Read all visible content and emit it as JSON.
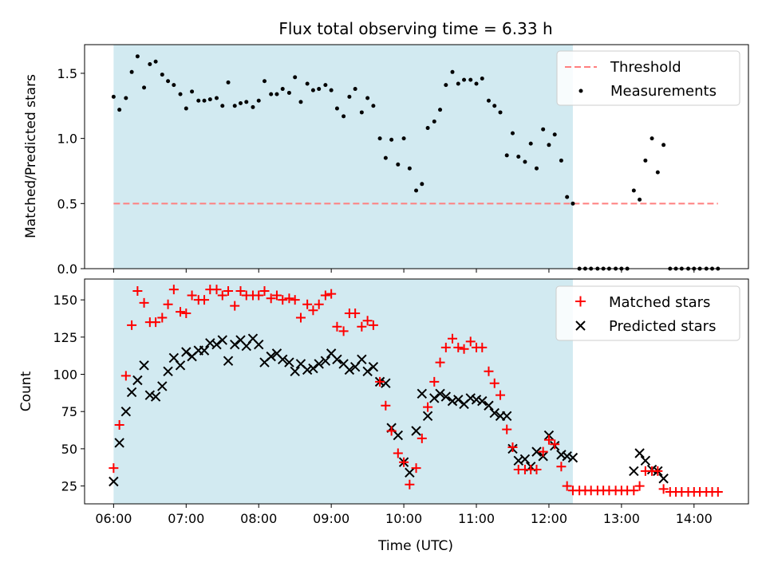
{
  "chart_data": {
    "type": "scatter",
    "title": "Flux total observing time = 6.33 h",
    "x_unit": "hours UTC",
    "xlabel": "Time (UTC)",
    "xlim": [
      5.6,
      14.75
    ],
    "xticks": [
      "06:00",
      "07:00",
      "08:00",
      "09:00",
      "10:00",
      "11:00",
      "12:00",
      "13:00",
      "14:00"
    ],
    "observing_window": [
      6.0,
      12.33
    ],
    "colors": {
      "window": "#add8e6",
      "threshold": "#ff7f7f",
      "matched": "#ff0000",
      "predicted": "#000000",
      "measurement": "#000000"
    },
    "top": {
      "ylabel": "Matched/Predicted stars",
      "ylim": [
        0,
        1.72
      ],
      "yticks": [
        "0.0",
        "0.5",
        "1.0",
        "1.5"
      ],
      "legend": {
        "position": "top-right",
        "threshold_label": "Threshold",
        "measurements_label": "Measurements"
      },
      "threshold": {
        "x": [
          6.0,
          14.33
        ],
        "y": 0.5
      },
      "measurements": [
        [
          6.0,
          1.32
        ],
        [
          6.08,
          1.22
        ],
        [
          6.17,
          1.31
        ],
        [
          6.25,
          1.51
        ],
        [
          6.33,
          1.63
        ],
        [
          6.42,
          1.39
        ],
        [
          6.5,
          1.57
        ],
        [
          6.58,
          1.59
        ],
        [
          6.67,
          1.49
        ],
        [
          6.75,
          1.44
        ],
        [
          6.83,
          1.41
        ],
        [
          6.92,
          1.34
        ],
        [
          7.0,
          1.23
        ],
        [
          7.08,
          1.36
        ],
        [
          7.17,
          1.29
        ],
        [
          7.25,
          1.29
        ],
        [
          7.33,
          1.3
        ],
        [
          7.42,
          1.31
        ],
        [
          7.5,
          1.25
        ],
        [
          7.58,
          1.43
        ],
        [
          7.67,
          1.25
        ],
        [
          7.75,
          1.27
        ],
        [
          7.83,
          1.28
        ],
        [
          7.92,
          1.24
        ],
        [
          8.0,
          1.29
        ],
        [
          8.08,
          1.44
        ],
        [
          8.17,
          1.34
        ],
        [
          8.25,
          1.34
        ],
        [
          8.33,
          1.38
        ],
        [
          8.42,
          1.35
        ],
        [
          8.5,
          1.47
        ],
        [
          8.58,
          1.28
        ],
        [
          8.67,
          1.42
        ],
        [
          8.75,
          1.37
        ],
        [
          8.83,
          1.38
        ],
        [
          8.92,
          1.41
        ],
        [
          9.0,
          1.37
        ],
        [
          9.08,
          1.23
        ],
        [
          9.17,
          1.17
        ],
        [
          9.25,
          1.32
        ],
        [
          9.33,
          1.38
        ],
        [
          9.42,
          1.2
        ],
        [
          9.5,
          1.31
        ],
        [
          9.58,
          1.25
        ],
        [
          9.67,
          1.0
        ],
        [
          9.75,
          0.85
        ],
        [
          9.83,
          0.99
        ],
        [
          9.92,
          0.8
        ],
        [
          10.0,
          1.0
        ],
        [
          10.08,
          0.77
        ],
        [
          10.17,
          0.6
        ],
        [
          10.25,
          0.65
        ],
        [
          10.33,
          1.08
        ],
        [
          10.42,
          1.13
        ],
        [
          10.5,
          1.22
        ],
        [
          10.58,
          1.41
        ],
        [
          10.67,
          1.51
        ],
        [
          10.75,
          1.42
        ],
        [
          10.83,
          1.45
        ],
        [
          10.92,
          1.45
        ],
        [
          11.0,
          1.42
        ],
        [
          11.08,
          1.46
        ],
        [
          11.17,
          1.29
        ],
        [
          11.25,
          1.25
        ],
        [
          11.33,
          1.2
        ],
        [
          11.42,
          0.87
        ],
        [
          11.5,
          1.04
        ],
        [
          11.58,
          0.86
        ],
        [
          11.67,
          0.82
        ],
        [
          11.75,
          0.96
        ],
        [
          11.83,
          0.77
        ],
        [
          11.92,
          1.07
        ],
        [
          12.0,
          0.95
        ],
        [
          12.08,
          1.03
        ],
        [
          12.17,
          0.83
        ],
        [
          12.25,
          0.55
        ],
        [
          12.33,
          0.5
        ],
        [
          12.42,
          0
        ],
        [
          12.5,
          0
        ],
        [
          12.58,
          0
        ],
        [
          12.67,
          0
        ],
        [
          12.75,
          0
        ],
        [
          12.83,
          0
        ],
        [
          12.92,
          0
        ],
        [
          13.0,
          0
        ],
        [
          13.08,
          0
        ],
        [
          13.17,
          0.6
        ],
        [
          13.25,
          0.53
        ],
        [
          13.33,
          0.83
        ],
        [
          13.42,
          1.0
        ],
        [
          13.5,
          0.74
        ],
        [
          13.58,
          0.95
        ],
        [
          13.67,
          0
        ],
        [
          13.75,
          0
        ],
        [
          13.83,
          0
        ],
        [
          13.92,
          0
        ],
        [
          14.0,
          0
        ],
        [
          14.08,
          0
        ],
        [
          14.17,
          0
        ],
        [
          14.25,
          0
        ],
        [
          14.33,
          0
        ]
      ]
    },
    "bottom": {
      "ylabel": "Count",
      "ylim": [
        13,
        164
      ],
      "yticks": [
        "25",
        "50",
        "75",
        "100",
        "125",
        "150"
      ],
      "legend": {
        "position": "top-right",
        "matched_label": "Matched stars",
        "predicted_label": "Predicted stars"
      },
      "matched": [
        [
          6.0,
          37
        ],
        [
          6.08,
          66
        ],
        [
          6.17,
          99
        ],
        [
          6.25,
          133
        ],
        [
          6.33,
          156
        ],
        [
          6.42,
          148
        ],
        [
          6.5,
          135
        ],
        [
          6.58,
          135
        ],
        [
          6.67,
          138
        ],
        [
          6.75,
          147
        ],
        [
          6.83,
          157
        ],
        [
          6.92,
          142
        ],
        [
          7.0,
          141
        ],
        [
          7.08,
          153
        ],
        [
          7.17,
          150
        ],
        [
          7.25,
          150
        ],
        [
          7.33,
          157
        ],
        [
          7.42,
          157
        ],
        [
          7.5,
          153
        ],
        [
          7.58,
          156
        ],
        [
          7.67,
          146
        ],
        [
          7.75,
          156
        ],
        [
          7.83,
          153
        ],
        [
          7.92,
          153
        ],
        [
          8.0,
          153
        ],
        [
          8.08,
          156
        ],
        [
          8.17,
          151
        ],
        [
          8.25,
          153
        ],
        [
          8.33,
          150
        ],
        [
          8.42,
          151
        ],
        [
          8.5,
          150
        ],
        [
          8.58,
          138
        ],
        [
          8.67,
          147
        ],
        [
          8.75,
          143
        ],
        [
          8.83,
          147
        ],
        [
          8.92,
          153
        ],
        [
          9.0,
          154
        ],
        [
          9.08,
          132
        ],
        [
          9.17,
          129
        ],
        [
          9.25,
          141
        ],
        [
          9.33,
          141
        ],
        [
          9.42,
          132
        ],
        [
          9.5,
          136
        ],
        [
          9.58,
          133
        ],
        [
          9.67,
          95
        ],
        [
          9.75,
          79
        ],
        [
          9.83,
          62
        ],
        [
          9.92,
          47
        ],
        [
          10.0,
          41
        ],
        [
          10.08,
          26
        ],
        [
          10.17,
          37
        ],
        [
          10.25,
          57
        ],
        [
          10.33,
          78
        ],
        [
          10.42,
          95
        ],
        [
          10.5,
          108
        ],
        [
          10.58,
          118
        ],
        [
          10.67,
          124
        ],
        [
          10.75,
          118
        ],
        [
          10.83,
          117
        ],
        [
          10.92,
          122
        ],
        [
          11.0,
          118
        ],
        [
          11.08,
          118
        ],
        [
          11.17,
          102
        ],
        [
          11.25,
          94
        ],
        [
          11.33,
          86
        ],
        [
          11.42,
          63
        ],
        [
          11.5,
          51
        ],
        [
          11.58,
          36
        ],
        [
          11.67,
          36
        ],
        [
          11.75,
          36
        ],
        [
          11.83,
          36
        ],
        [
          11.92,
          48
        ],
        [
          12.0,
          56
        ],
        [
          12.08,
          53
        ],
        [
          12.17,
          38
        ],
        [
          12.25,
          25
        ],
        [
          12.33,
          22
        ],
        [
          12.42,
          22
        ],
        [
          12.5,
          22
        ],
        [
          12.58,
          22
        ],
        [
          12.67,
          22
        ],
        [
          12.75,
          22
        ],
        [
          12.83,
          22
        ],
        [
          12.92,
          22
        ],
        [
          13.0,
          22
        ],
        [
          13.08,
          22
        ],
        [
          13.17,
          22
        ],
        [
          13.25,
          25
        ],
        [
          13.33,
          35
        ],
        [
          13.42,
          35
        ],
        [
          13.5,
          35
        ],
        [
          13.58,
          23
        ],
        [
          13.67,
          21
        ],
        [
          13.75,
          21
        ],
        [
          13.83,
          21
        ],
        [
          13.92,
          21
        ],
        [
          14.0,
          21
        ],
        [
          14.08,
          21
        ],
        [
          14.17,
          21
        ],
        [
          14.25,
          21
        ],
        [
          14.33,
          21
        ]
      ],
      "predicted": [
        [
          6.0,
          28
        ],
        [
          6.08,
          54
        ],
        [
          6.17,
          75
        ],
        [
          6.25,
          88
        ],
        [
          6.33,
          96
        ],
        [
          6.42,
          106
        ],
        [
          6.5,
          86
        ],
        [
          6.58,
          85
        ],
        [
          6.67,
          92
        ],
        [
          6.75,
          102
        ],
        [
          6.83,
          111
        ],
        [
          6.92,
          106
        ],
        [
          7.0,
          115
        ],
        [
          7.08,
          112
        ],
        [
          7.17,
          116
        ],
        [
          7.25,
          116
        ],
        [
          7.33,
          121
        ],
        [
          7.42,
          120
        ],
        [
          7.5,
          123
        ],
        [
          7.58,
          109
        ],
        [
          7.67,
          120
        ],
        [
          7.75,
          123
        ],
        [
          7.83,
          119
        ],
        [
          7.92,
          124
        ],
        [
          8.0,
          120
        ],
        [
          8.08,
          108
        ],
        [
          8.17,
          112
        ],
        [
          8.25,
          114
        ],
        [
          8.33,
          110
        ],
        [
          8.42,
          108
        ],
        [
          8.5,
          102
        ],
        [
          8.58,
          107
        ],
        [
          8.67,
          103
        ],
        [
          8.75,
          104
        ],
        [
          8.83,
          107
        ],
        [
          8.92,
          109
        ],
        [
          9.0,
          114
        ],
        [
          9.08,
          110
        ],
        [
          9.17,
          107
        ],
        [
          9.25,
          103
        ],
        [
          9.33,
          105
        ],
        [
          9.42,
          110
        ],
        [
          9.5,
          102
        ],
        [
          9.58,
          105
        ],
        [
          9.67,
          95
        ],
        [
          9.75,
          94
        ],
        [
          9.83,
          64
        ],
        [
          9.92,
          59
        ],
        [
          10.0,
          41
        ],
        [
          10.08,
          34
        ],
        [
          10.17,
          62
        ],
        [
          10.25,
          87
        ],
        [
          10.33,
          72
        ],
        [
          10.42,
          84
        ],
        [
          10.5,
          87
        ],
        [
          10.58,
          85
        ],
        [
          10.67,
          82
        ],
        [
          10.75,
          83
        ],
        [
          10.83,
          80
        ],
        [
          10.92,
          84
        ],
        [
          11.0,
          83
        ],
        [
          11.08,
          82
        ],
        [
          11.17,
          79
        ],
        [
          11.25,
          74
        ],
        [
          11.33,
          72
        ],
        [
          11.42,
          72
        ],
        [
          11.5,
          50
        ],
        [
          11.58,
          42
        ],
        [
          11.67,
          43
        ],
        [
          11.75,
          38
        ],
        [
          11.83,
          48
        ],
        [
          11.92,
          45
        ],
        [
          12.0,
          59
        ],
        [
          12.08,
          52
        ],
        [
          12.17,
          46
        ],
        [
          12.25,
          45
        ],
        [
          12.33,
          44
        ],
        [
          13.17,
          35
        ],
        [
          13.25,
          47
        ],
        [
          13.33,
          42
        ],
        [
          13.42,
          36
        ],
        [
          13.5,
          35
        ],
        [
          13.58,
          30
        ]
      ]
    }
  }
}
